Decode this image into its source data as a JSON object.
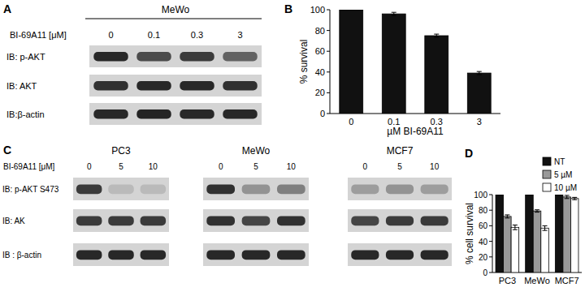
{
  "blots": [
    {
      "panel": "A",
      "lane_header": "BI-69A11 [μM]",
      "groups": [
        {
          "name": "MeWo",
          "lanes": [
            "0",
            "0.1",
            "0.3",
            "3"
          ]
        }
      ],
      "rows": [
        {
          "label": "IB: p-AKT",
          "intensity": [
            0.9,
            0.72,
            0.8,
            0.6
          ]
        },
        {
          "label": "IB: AKT",
          "intensity": [
            0.85,
            0.9,
            0.9,
            0.85
          ]
        },
        {
          "label": "IB:β-actin",
          "intensity": [
            0.9,
            0.92,
            0.9,
            0.9
          ]
        }
      ]
    },
    {
      "panel": "C",
      "lane_header": "BI-69A11 [μM]",
      "groups": [
        {
          "name": "PC3",
          "lanes": [
            "0",
            "5",
            "10"
          ]
        },
        {
          "name": "MeWo",
          "lanes": [
            "0",
            "5",
            "10"
          ]
        },
        {
          "name": "MCF7",
          "lanes": [
            "0",
            "5",
            "10"
          ]
        }
      ],
      "rows": [
        {
          "label": "IB: p-AKT S473",
          "intensity": [
            0.8,
            0.15,
            0.15,
            0.85,
            0.35,
            0.45,
            0.3,
            0.35,
            0.3
          ]
        },
        {
          "label": "IB: AK",
          "intensity": [
            0.8,
            0.8,
            0.8,
            0.85,
            0.75,
            0.85,
            0.75,
            0.8,
            0.8
          ]
        },
        {
          "label": "IB : β-actin",
          "intensity": [
            0.9,
            0.9,
            0.9,
            0.9,
            0.9,
            0.9,
            0.9,
            0.9,
            0.9
          ]
        }
      ]
    }
  ],
  "chart_data": [
    {
      "type": "bar",
      "panel": "B",
      "xlabel": "µM BI-69A11",
      "ylabel": "% survival",
      "categories": [
        "0",
        "0.1",
        "0.3",
        "3"
      ],
      "values": [
        100,
        96,
        75,
        39
      ],
      "errors": [
        0,
        1.5,
        1.5,
        1.5
      ],
      "color": "#111111",
      "ylim": [
        0,
        100
      ],
      "yticks": [
        0,
        20,
        40,
        60,
        80,
        100
      ],
      "grid": false
    },
    {
      "type": "bar",
      "panel": "D",
      "ylabel": "% cell survival",
      "categories": [
        "PC3",
        "MeWo",
        "MCF7"
      ],
      "series": [
        {
          "name": "NT",
          "color": "#111111",
          "values": [
            100,
            100,
            100
          ],
          "errors": [
            0,
            0,
            0
          ]
        },
        {
          "name": "5 µM",
          "color": "#999999",
          "values": [
            72,
            79,
            97
          ],
          "errors": [
            2,
            1.5,
            2
          ]
        },
        {
          "name": "10 µM",
          "color": "#ffffff",
          "values": [
            58,
            57,
            95
          ],
          "errors": [
            3,
            3,
            1.5
          ]
        }
      ],
      "ylim": [
        0,
        100
      ],
      "yticks": [
        0,
        20,
        40,
        60,
        80,
        100
      ],
      "grid": false,
      "legend": "right"
    }
  ]
}
